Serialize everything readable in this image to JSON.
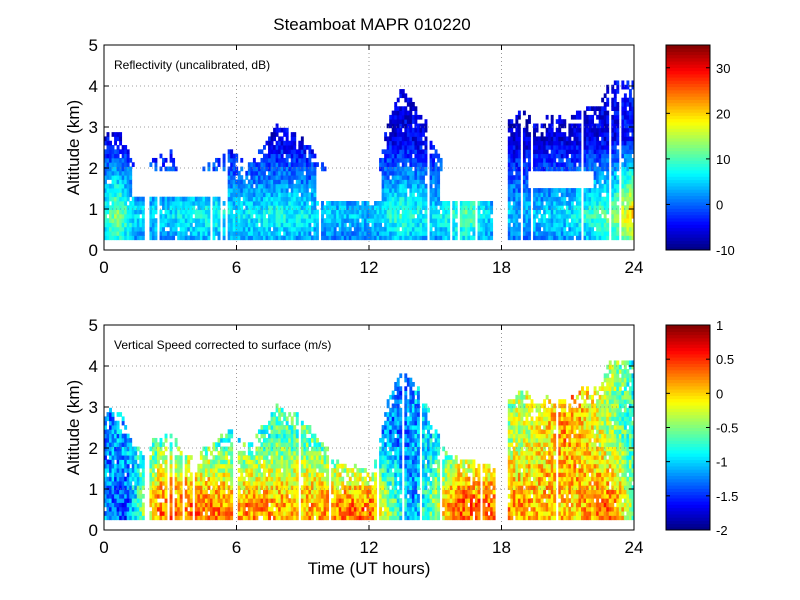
{
  "figure_title": "Steamboat MAPR 010220",
  "colors": {
    "axis": "#000000",
    "grid": "#808080",
    "background": "#ffffff"
  },
  "chart_data": [
    {
      "type": "heatmap",
      "label": "Reflectivity (uncalibrated, dB)",
      "xlabel": "",
      "ylabel": "Altitude (km)",
      "xlim": [
        0,
        24
      ],
      "ylim": [
        0,
        5
      ],
      "xticks": [
        0,
        6,
        12,
        18,
        24
      ],
      "yticks": [
        0,
        1,
        2,
        3,
        4,
        5
      ],
      "grid": "dotted",
      "colorbar": {
        "range": [
          -10,
          35
        ],
        "ticks": [
          -10,
          0,
          10,
          20,
          30
        ]
      },
      "gaps": [
        [
          1.85,
          2.05
        ],
        [
          17.75,
          18.3
        ]
      ],
      "echo_tops_km": [
        [
          0,
          2.7
        ],
        [
          0.3,
          2.9
        ],
        [
          0.8,
          2.8
        ],
        [
          1.2,
          2.2
        ],
        [
          1.8,
          1.8
        ],
        [
          2.3,
          2.2
        ],
        [
          3.0,
          2.4
        ],
        [
          3.5,
          1.9
        ],
        [
          4.0,
          1.7
        ],
        [
          5.0,
          2.2
        ],
        [
          5.8,
          2.4
        ],
        [
          6.5,
          2.0
        ],
        [
          7.2,
          2.5
        ],
        [
          7.8,
          3.0
        ],
        [
          8.5,
          2.9
        ],
        [
          9.2,
          2.6
        ],
        [
          10.0,
          2.0
        ],
        [
          10.8,
          1.6
        ],
        [
          11.5,
          1.5
        ],
        [
          12.2,
          1.4
        ],
        [
          12.8,
          3.0
        ],
        [
          13.4,
          3.9
        ],
        [
          14.0,
          3.6
        ],
        [
          14.5,
          3.2
        ],
        [
          15.0,
          2.4
        ],
        [
          15.6,
          1.8
        ],
        [
          16.3,
          1.7
        ],
        [
          17.0,
          1.6
        ],
        [
          17.7,
          1.5
        ],
        [
          18.3,
          3.1
        ],
        [
          19.0,
          3.4
        ],
        [
          19.6,
          3.0
        ],
        [
          20.3,
          3.3
        ],
        [
          21.0,
          3.1
        ],
        [
          21.7,
          3.5
        ],
        [
          22.4,
          3.4
        ],
        [
          22.9,
          4.1
        ],
        [
          23.5,
          4.1
        ],
        [
          24,
          4.1
        ]
      ],
      "core_dBZ": [
        [
          0,
          8
        ],
        [
          0.6,
          14
        ],
        [
          1.5,
          5
        ],
        [
          3,
          6
        ],
        [
          5,
          8
        ],
        [
          6,
          6
        ],
        [
          8,
          8
        ],
        [
          10,
          5
        ],
        [
          12,
          4
        ],
        [
          13.5,
          10
        ],
        [
          15,
          6
        ],
        [
          16.5,
          12
        ],
        [
          17.5,
          5
        ],
        [
          19,
          4
        ],
        [
          21,
          6
        ],
        [
          23,
          12
        ],
        [
          24,
          22
        ]
      ]
    },
    {
      "type": "heatmap",
      "label": "Vertical Speed corrected to surface (m/s)",
      "xlabel": "Time (UT hours)",
      "ylabel": "Altitude (km)",
      "xlim": [
        0,
        24
      ],
      "ylim": [
        0,
        5
      ],
      "xticks": [
        0,
        6,
        12,
        18,
        24
      ],
      "yticks": [
        0,
        1,
        2,
        3,
        4,
        5
      ],
      "grid": "dotted",
      "colorbar": {
        "range": [
          -2,
          1
        ],
        "ticks": [
          1,
          0.5,
          0,
          -0.5,
          -1,
          -1.5,
          -2
        ]
      },
      "gaps": [
        [
          1.85,
          2.05
        ],
        [
          17.75,
          18.3
        ]
      ],
      "echo_tops_km": [
        [
          0,
          2.7
        ],
        [
          0.3,
          2.9
        ],
        [
          0.8,
          2.8
        ],
        [
          1.2,
          2.2
        ],
        [
          1.8,
          1.8
        ],
        [
          2.3,
          2.2
        ],
        [
          3.0,
          2.4
        ],
        [
          3.5,
          1.9
        ],
        [
          4.0,
          1.7
        ],
        [
          5.0,
          2.2
        ],
        [
          5.8,
          2.4
        ],
        [
          6.5,
          2.0
        ],
        [
          7.2,
          2.5
        ],
        [
          7.8,
          3.0
        ],
        [
          8.5,
          2.9
        ],
        [
          9.2,
          2.6
        ],
        [
          10.0,
          2.0
        ],
        [
          10.8,
          1.6
        ],
        [
          11.5,
          1.5
        ],
        [
          12.2,
          1.4
        ],
        [
          12.8,
          3.0
        ],
        [
          13.4,
          3.9
        ],
        [
          14.0,
          3.6
        ],
        [
          14.5,
          3.2
        ],
        [
          15.0,
          2.4
        ],
        [
          15.6,
          1.8
        ],
        [
          16.3,
          1.7
        ],
        [
          17.0,
          1.6
        ],
        [
          17.7,
          1.5
        ],
        [
          18.3,
          3.1
        ],
        [
          19.0,
          3.4
        ],
        [
          19.6,
          3.0
        ],
        [
          20.3,
          3.3
        ],
        [
          21.0,
          3.1
        ],
        [
          21.7,
          3.5
        ],
        [
          22.4,
          3.4
        ],
        [
          22.9,
          4.1
        ],
        [
          23.5,
          4.1
        ],
        [
          24,
          4.1
        ]
      ],
      "low_level_speed_ms": [
        [
          0,
          -1.2
        ],
        [
          1,
          -1.4
        ],
        [
          2.5,
          0.3
        ],
        [
          6,
          0.2
        ],
        [
          9,
          0.1
        ],
        [
          12,
          0.3
        ],
        [
          14,
          -1.2
        ],
        [
          16,
          0.4
        ],
        [
          18.5,
          0.2
        ],
        [
          21,
          0.0
        ],
        [
          23,
          0.3
        ],
        [
          24,
          -0.5
        ]
      ],
      "upper_level_speed_ms": [
        [
          0,
          -1.3
        ],
        [
          3,
          -0.6
        ],
        [
          6,
          -0.8
        ],
        [
          9,
          -0.6
        ],
        [
          13.5,
          -1.3
        ],
        [
          16,
          -0.7
        ],
        [
          19,
          -0.3
        ],
        [
          21,
          0.2
        ],
        [
          23,
          -0.4
        ],
        [
          24,
          -0.8
        ]
      ]
    }
  ]
}
